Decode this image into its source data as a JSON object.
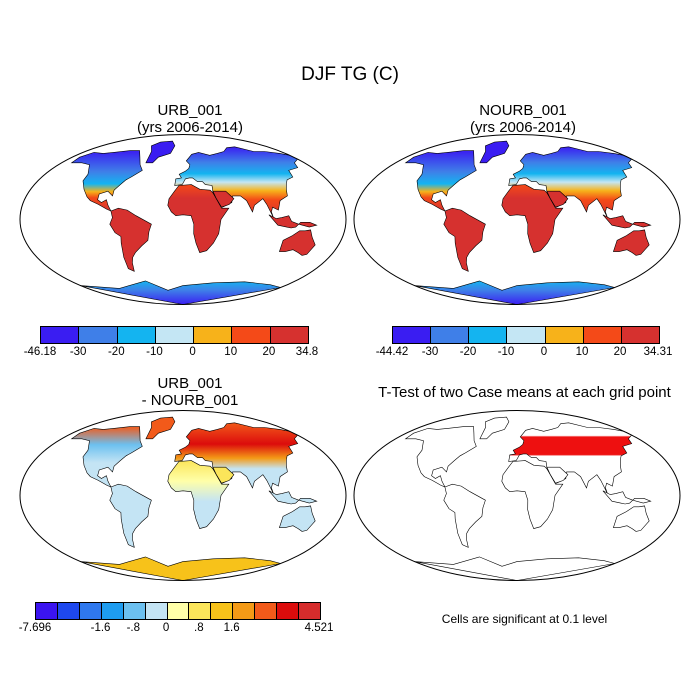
{
  "figure_title": "DJF TG (C)",
  "panels": [
    {
      "title_line1": "URB_001",
      "title_line2": "(yrs 2006-2014)",
      "colorbar": {
        "colors": [
          "#3a1df2",
          "#3f7fe8",
          "#14b4f0",
          "#c4e6f4",
          "#f7b21a",
          "#f44a18",
          "#d6312f"
        ],
        "labels": [
          "-46.18",
          "-30",
          "-20",
          "-10",
          "0",
          "10",
          "20",
          "34.8"
        ]
      }
    },
    {
      "title_line1": "NOURB_001",
      "title_line2": "(yrs 2006-2014)",
      "colorbar": {
        "colors": [
          "#3a1df2",
          "#3f7fe8",
          "#14b4f0",
          "#c4e6f4",
          "#f7b21a",
          "#f44a18",
          "#d6312f"
        ],
        "labels": [
          "-44.42",
          "-30",
          "-20",
          "-10",
          "0",
          "10",
          "20",
          "34.31"
        ]
      }
    },
    {
      "title_line1": "URB_001",
      "title_line2": "- NOURB_001",
      "colorbar": {
        "colors": [
          "#3b14f0",
          "#1e48ee",
          "#2f78ee",
          "#1e9cf0",
          "#6cc0f0",
          "#c4e4f4",
          "#ffffa8",
          "#fbe55a",
          "#f7c21a",
          "#f49a16",
          "#f25a1a",
          "#dc0c0c",
          "#d62c2c"
        ],
        "labels": [
          "-7.696",
          "-1.6",
          "-.8",
          "0",
          ".8",
          "1.6",
          "4.521"
        ]
      }
    },
    {
      "title": "T-Test of two Case means at each grid point",
      "note": "Cells are significant at 0.1 level"
    }
  ]
}
